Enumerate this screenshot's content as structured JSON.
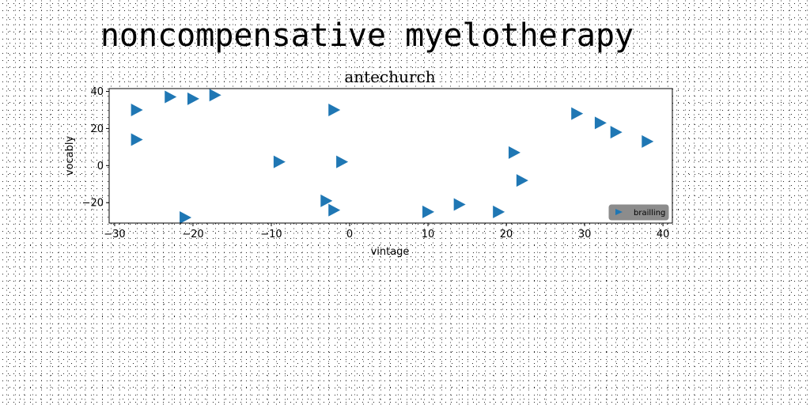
{
  "figure": {
    "suptitle": "noncompensative myelotherapy"
  },
  "chart_data": {
    "type": "scatter",
    "title": "antechurch",
    "xlabel": "vintage",
    "ylabel": "vocably",
    "xlim": [
      -30.7,
      41.2
    ],
    "ylim": [
      -31,
      41.5
    ],
    "xticks": [
      -30,
      -20,
      -10,
      0,
      10,
      20,
      30,
      40
    ],
    "yticks": [
      -20,
      0,
      20,
      40
    ],
    "grid": false,
    "marker": "triangle-right",
    "marker_color": "#1f77b4",
    "legend": {
      "position": "lower-right",
      "background": "#8c8c8c"
    },
    "series": [
      {
        "name": "brailling",
        "points": [
          {
            "x": -27.2,
            "y": 30
          },
          {
            "x": -27.2,
            "y": 14
          },
          {
            "x": -22.9,
            "y": 37
          },
          {
            "x": -20.0,
            "y": 36
          },
          {
            "x": -17.2,
            "y": 38
          },
          {
            "x": -2.0,
            "y": 30
          },
          {
            "x": -9.0,
            "y": 2
          },
          {
            "x": -1.0,
            "y": 2
          },
          {
            "x": -21.0,
            "y": -28
          },
          {
            "x": -3.0,
            "y": -19
          },
          {
            "x": -2.0,
            "y": -24
          },
          {
            "x": 10.0,
            "y": -25
          },
          {
            "x": 14.0,
            "y": -21
          },
          {
            "x": 19.0,
            "y": -25
          },
          {
            "x": 21.0,
            "y": 7
          },
          {
            "x": 22.0,
            "y": -8
          },
          {
            "x": 29.0,
            "y": 28
          },
          {
            "x": 32.0,
            "y": 23
          },
          {
            "x": 34.0,
            "y": 18
          },
          {
            "x": 38.0,
            "y": 13
          }
        ]
      }
    ]
  }
}
